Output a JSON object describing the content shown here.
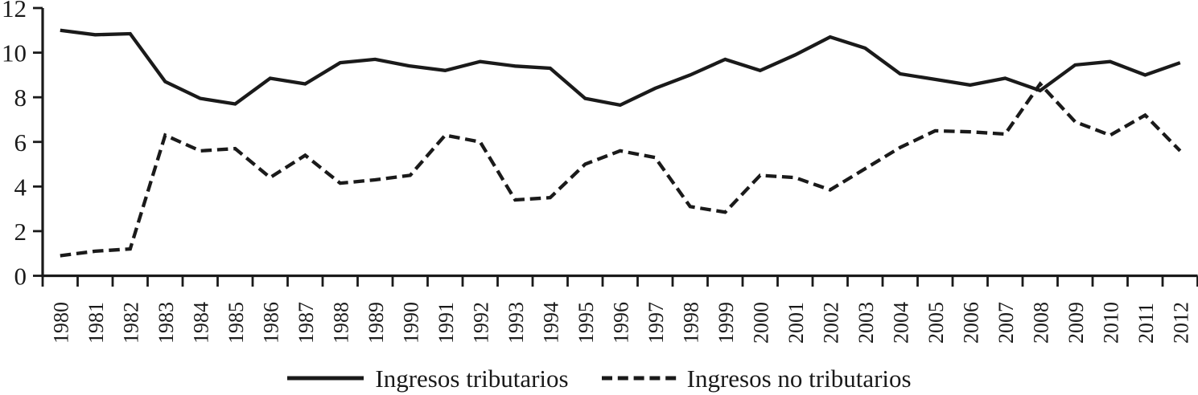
{
  "chart_data": {
    "type": "line",
    "title": "",
    "xlabel": "",
    "ylabel": "",
    "categories": [
      "1980",
      "1981",
      "1982",
      "1983",
      "1984",
      "1985",
      "1986",
      "1987",
      "1988",
      "1989",
      "1990",
      "1991",
      "1992",
      "1993",
      "1994",
      "1995",
      "1996",
      "1997",
      "1998",
      "1999",
      "2000",
      "2001",
      "2002",
      "2003",
      "2004",
      "2005",
      "2006",
      "2007",
      "2008",
      "2009",
      "2010",
      "2011",
      "2012"
    ],
    "series": [
      {
        "name": "Ingresos tributarios",
        "line_style": "solid",
        "values": [
          11.0,
          10.8,
          10.85,
          8.7,
          7.95,
          7.7,
          8.85,
          8.6,
          9.55,
          9.7,
          9.4,
          9.2,
          9.6,
          9.4,
          9.3,
          7.95,
          7.65,
          8.4,
          9.0,
          9.7,
          9.2,
          9.9,
          10.7,
          10.2,
          9.05,
          8.8,
          8.55,
          8.85,
          8.3,
          9.45,
          9.6,
          9.0,
          9.55
        ]
      },
      {
        "name": "Ingresos no tributarios",
        "line_style": "dashed",
        "values": [
          0.9,
          1.1,
          1.2,
          6.3,
          5.6,
          5.7,
          4.4,
          5.4,
          4.15,
          4.3,
          4.5,
          6.3,
          6.0,
          3.4,
          3.5,
          5.0,
          5.6,
          5.3,
          3.1,
          2.85,
          4.5,
          4.4,
          3.85,
          4.8,
          5.75,
          6.5,
          6.45,
          6.35,
          8.6,
          6.9,
          6.3,
          7.2,
          5.6
        ]
      }
    ],
    "ylim": [
      0,
      12
    ],
    "yticks": [
      0,
      2,
      4,
      6,
      8,
      10,
      12
    ],
    "grid": false,
    "legend_position": "bottom",
    "line_color": "#1a1a1a",
    "background_color": "#ffffff"
  }
}
